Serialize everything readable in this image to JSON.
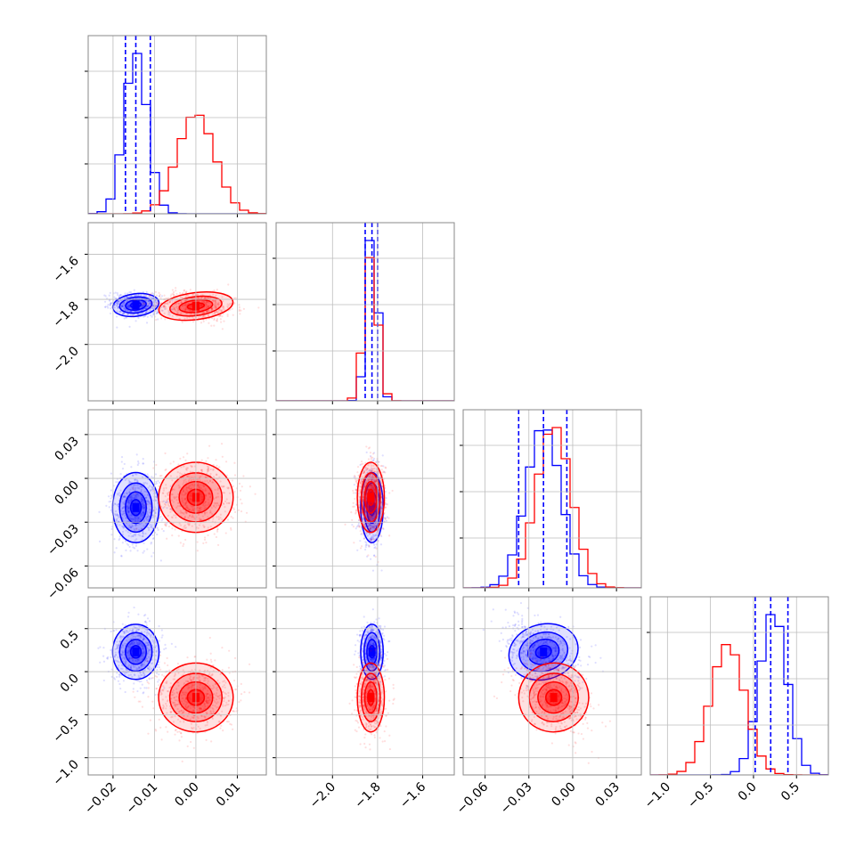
{
  "chart_data": {
    "type": "corner",
    "series": [
      {
        "name": "",
        "color": "#0000ff",
        "mean": [
          -0.0145,
          -1.825,
          -0.02,
          0.23
        ],
        "std": [
          0.0028,
          0.025,
          0.012,
          0.16
        ],
        "quantiles": [
          [
            -0.017,
            -0.0145,
            -0.011
          ],
          [
            -1.855,
            -1.825,
            -1.8
          ],
          [
            -0.037,
            -0.02,
            -0.004
          ],
          [
            0.02,
            0.2,
            0.4
          ]
        ]
      },
      {
        "name": "",
        "color": "#ff0000",
        "mean": [
          0.0,
          -1.83,
          -0.013,
          -0.3
        ],
        "std": [
          0.0045,
          0.03,
          0.012,
          0.2
        ]
      }
    ],
    "params": [
      {
        "range": [
          -0.026,
          0.017
        ],
        "ticks": [
          -0.02,
          -0.01,
          0.0,
          0.01
        ],
        "tick_labels": [
          "−0.02",
          "−0.01",
          "0.00",
          "0.01"
        ]
      },
      {
        "range": [
          -2.25,
          -1.46
        ],
        "ticks": [
          -2.0,
          -1.8,
          -1.6
        ],
        "tick_labels": [
          "−2.0",
          "−1.8",
          "−1.6"
        ]
      },
      {
        "range": [
          -0.075,
          0.047
        ],
        "ticks": [
          -0.06,
          -0.03,
          0.0,
          0.03
        ],
        "tick_labels": [
          "−0.06",
          "−0.03",
          "0.00",
          "0.03"
        ]
      },
      {
        "range": [
          -1.2,
          0.87
        ],
        "ticks": [
          -1.0,
          -0.5,
          0.0,
          0.5
        ],
        "tick_labels": [
          "−1.0",
          "−0.5",
          "0.0",
          "0.5"
        ]
      }
    ],
    "y_ticks": {
      "row1": {
        "ticks": [
          -2.0,
          -1.8,
          -1.6
        ],
        "tick_labels": [
          "−2.0",
          "−1.8",
          "−1.6"
        ]
      },
      "row2": {
        "ticks": [
          -0.06,
          -0.03,
          0.0,
          0.03
        ],
        "tick_labels": [
          "−0.06",
          "−0.03",
          "0.00",
          "0.03"
        ]
      },
      "row3": {
        "ticks": [
          -1.0,
          -0.5,
          0.0,
          0.5
        ],
        "tick_labels": [
          "−1.0",
          "−0.5",
          "0.0",
          "0.5"
        ]
      }
    },
    "title": "",
    "xlabel": "",
    "ylabel": "",
    "grid": true,
    "contour_levels": 4,
    "quantile_line_style": "dashed"
  }
}
